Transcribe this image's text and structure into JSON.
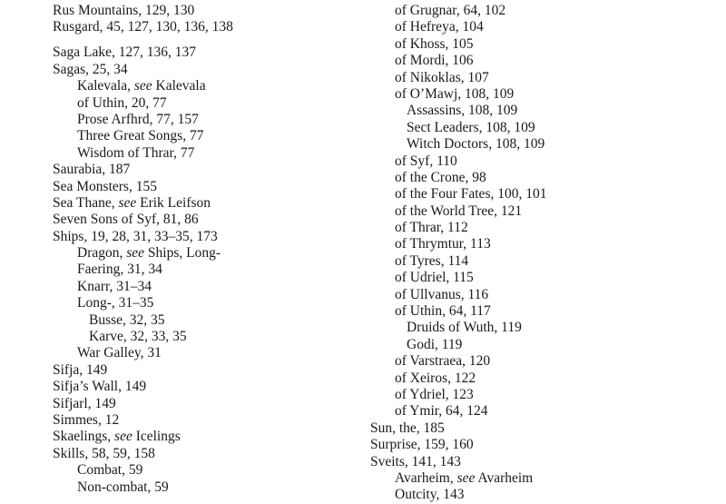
{
  "left_column": [
    {
      "level": 0,
      "text": "Rus Mountains, 129, 130"
    },
    {
      "level": 0,
      "text": "Rusgard, 45, 127, 130, 136, 138"
    },
    {
      "gap": true
    },
    {
      "level": 0,
      "text": "Saga Lake, 127, 136, 137"
    },
    {
      "level": 0,
      "text": "Sagas, 25, 34"
    },
    {
      "level": 1,
      "text": "Kalevala, ",
      "see": "see",
      "after": " Kalevala"
    },
    {
      "level": 1,
      "text": "of Uthin, 20, 77"
    },
    {
      "level": 1,
      "text": "Prose Arfhrd, 77, 157"
    },
    {
      "level": 1,
      "text": "Three Great Songs, 77"
    },
    {
      "level": 1,
      "text": "Wisdom of Thrar, 77"
    },
    {
      "level": 0,
      "text": "Saurabia, 187"
    },
    {
      "level": 0,
      "text": "Sea Monsters, 155"
    },
    {
      "level": 0,
      "text": "Sea Thane, ",
      "see": "see",
      "after": " Erik Leifson"
    },
    {
      "level": 0,
      "text": "Seven Sons of Syf, 81, 86"
    },
    {
      "level": 0,
      "text": "Ships, 19, 28, 31, 33–35, 173"
    },
    {
      "level": 1,
      "text": "Dragon, ",
      "see": "see",
      "after": " Ships, Long-"
    },
    {
      "level": 1,
      "text": "Faering, 31, 34"
    },
    {
      "level": 1,
      "text": "Knarr, 31–34"
    },
    {
      "level": 1,
      "text": "Long-, 31–35"
    },
    {
      "level": 2,
      "text": "Busse, 32, 35"
    },
    {
      "level": 2,
      "text": "Karve, 32, 33, 35"
    },
    {
      "level": 1,
      "text": "War Galley, 31"
    },
    {
      "level": 0,
      "text": "Sifja, 149"
    },
    {
      "level": 0,
      "text": "Sifja’s Wall, 149"
    },
    {
      "level": 0,
      "text": "Sifjarl, 149"
    },
    {
      "level": 0,
      "text": "Simmes, 12"
    },
    {
      "level": 0,
      "text": "Skaelings, ",
      "see": "see",
      "after": " Icelings"
    },
    {
      "level": 0,
      "text": "Skills, 58, 59, 158"
    },
    {
      "level": 1,
      "text": "Combat, 59"
    },
    {
      "level": 1,
      "text": "Non-combat, 59"
    }
  ],
  "right_column": [
    {
      "level": 1,
      "text": "of Grugnar, 64, 102"
    },
    {
      "level": 1,
      "text": "of Hefreya, 104"
    },
    {
      "level": 1,
      "text": "of Khoss, 105"
    },
    {
      "level": 1,
      "text": "of Mordi, 106"
    },
    {
      "level": 1,
      "text": "of Nikoklas, 107"
    },
    {
      "level": 1,
      "text": "of O’Mawj, 108, 109"
    },
    {
      "level": 2,
      "text": "Assassins, 108, 109"
    },
    {
      "level": 2,
      "text": "Sect Leaders, 108, 109"
    },
    {
      "level": 2,
      "text": "Witch Doctors, 108, 109"
    },
    {
      "level": 1,
      "text": "of Syf, 110"
    },
    {
      "level": 1,
      "text": "of the Crone, 98"
    },
    {
      "level": 1,
      "text": "of the Four Fates, 100, 101"
    },
    {
      "level": 1,
      "text": "of the World Tree, 121"
    },
    {
      "level": 1,
      "text": "of Thrar, 112"
    },
    {
      "level": 1,
      "text": "of Thrymtur, 113"
    },
    {
      "level": 1,
      "text": "of Tyres, 114"
    },
    {
      "level": 1,
      "text": "of Udriel, 115"
    },
    {
      "level": 1,
      "text": "of Ullvanus, 116"
    },
    {
      "level": 1,
      "text": "of Uthin, 64, 117"
    },
    {
      "level": 2,
      "text": "Druids of Wuth, 119"
    },
    {
      "level": 2,
      "text": "Godi, 119"
    },
    {
      "level": 1,
      "text": "of Varstraea, 120"
    },
    {
      "level": 1,
      "text": "of Xeiros, 122"
    },
    {
      "level": 1,
      "text": "of Ydriel, 123"
    },
    {
      "level": 1,
      "text": "of Ymir, 64, 124"
    },
    {
      "level": 0,
      "text": "Sun, the, 185"
    },
    {
      "level": 0,
      "text": "Surprise, 159, 160"
    },
    {
      "level": 0,
      "text": "Sveits, 141, 143"
    },
    {
      "level": 1,
      "text": "Avarheim, ",
      "see": "see",
      "after": " Avarheim"
    },
    {
      "level": 1,
      "text": "Outcity, 143"
    }
  ]
}
